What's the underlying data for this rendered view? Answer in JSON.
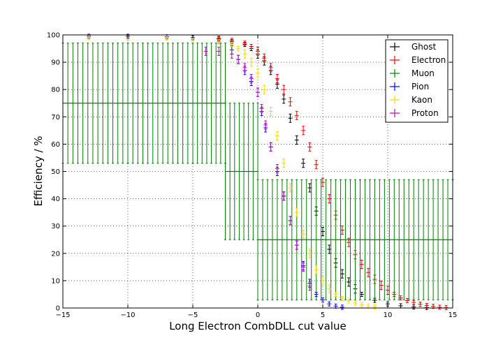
{
  "chart_data": {
    "type": "scatter",
    "title": "",
    "xlabel": "Long Electron CombDLL cut value",
    "ylabel": "Efficiency / %",
    "xlim": [
      -15,
      15
    ],
    "ylim": [
      0,
      100
    ],
    "x_ticks": [
      "−15",
      "−10",
      "−5",
      "0",
      "5",
      "10",
      "15"
    ],
    "y_ticks": [
      "0",
      "10",
      "20",
      "30",
      "40",
      "50",
      "60",
      "70",
      "80",
      "90",
      "100"
    ],
    "grid": true,
    "legend_position": "top-right",
    "series": [
      {
        "name": "Ghost",
        "color": "#000000",
        "x": [
          -3,
          -2,
          -1,
          -0.5,
          0,
          0.5,
          1,
          1.5,
          2,
          2.5,
          3,
          3.5,
          4,
          4.5,
          5,
          5.5,
          6,
          6.5,
          7,
          7.5,
          8,
          9,
          10,
          11,
          12,
          13
        ],
        "y": [
          98.5,
          97.5,
          96.5,
          95,
          93,
          90.5,
          87,
          82,
          76.5,
          69.5,
          61.5,
          53,
          44,
          35.5,
          28,
          21.5,
          16.5,
          12.5,
          9.5,
          7,
          5,
          2.8,
          1.5,
          0.8,
          0.4,
          0.2
        ]
      },
      {
        "name": "Electron",
        "color": "#ff0000",
        "x": [
          -3,
          -2,
          -1,
          -0.5,
          0,
          0.5,
          1,
          1.5,
          2,
          2.5,
          3,
          3.5,
          4,
          4.5,
          5,
          5.5,
          6,
          6.5,
          7,
          7.5,
          8,
          8.5,
          9,
          9.5,
          10,
          10.5,
          11,
          11.5,
          12,
          12.5,
          13,
          13.5,
          14,
          14.5
        ],
        "y": [
          98.8,
          98,
          97,
          95.8,
          94,
          91.5,
          88,
          84,
          80,
          75.5,
          70.5,
          65,
          59,
          52.5,
          46,
          40,
          34,
          28.5,
          24,
          19.5,
          16,
          13,
          10.5,
          8.3,
          6.5,
          5,
          3.7,
          2.7,
          2,
          1.4,
          0.9,
          0.6,
          0.3,
          0.15
        ]
      },
      {
        "name": "Muon",
        "color": "#007f00",
        "x": [
          -15,
          -10,
          -5,
          -2.5,
          0
        ],
        "y": [
          75,
          75,
          75,
          50,
          25
        ],
        "err": [
          22,
          22,
          22,
          25,
          22
        ]
      },
      {
        "name": "Pion",
        "color": "#0000ff",
        "x": [
          -13,
          -10,
          -7,
          -5,
          -3,
          -2,
          -1.5,
          -1,
          -0.5,
          0,
          0.3,
          0.6,
          1,
          1.5,
          2,
          2.5,
          3,
          3.5,
          4,
          4.5,
          5,
          5.5,
          6,
          6.5
        ],
        "y": [
          99.5,
          99.5,
          99.3,
          99,
          97.5,
          94.5,
          91,
          87,
          83,
          79,
          72,
          66,
          59,
          50,
          41,
          32,
          23,
          15.5,
          9,
          5,
          3,
          1.5,
          0.7,
          0.3
        ]
      },
      {
        "name": "Kaon",
        "color": "#ffd700",
        "x": [
          -13,
          -10,
          -7,
          -5,
          -3,
          -2,
          -1.5,
          -1,
          -0.5,
          0,
          0.5,
          1,
          1.5,
          2,
          2.5,
          3,
          3.5,
          4,
          4.5,
          5,
          5.5,
          6,
          6.5,
          7,
          7.5,
          8,
          8.5,
          9
        ],
        "y": [
          99,
          99,
          98.8,
          98.5,
          97.5,
          96.5,
          95,
          93,
          90,
          86,
          80,
          72,
          63,
          53,
          44,
          35,
          27,
          20,
          14,
          10,
          7,
          5,
          3.5,
          2.5,
          1.8,
          1.2,
          0.7,
          0.4
        ]
      },
      {
        "name": "Proton",
        "color": "#bf00bf",
        "x": [
          -4,
          -3,
          -2,
          -1.5,
          -1,
          -0.5,
          0,
          0.3,
          0.6,
          1,
          1.5,
          2,
          2.5,
          3,
          3.5,
          4
        ],
        "y": [
          94,
          94,
          93,
          91,
          88,
          84,
          79,
          73,
          67,
          59,
          51,
          41,
          32,
          23,
          15,
          8
        ]
      }
    ]
  }
}
